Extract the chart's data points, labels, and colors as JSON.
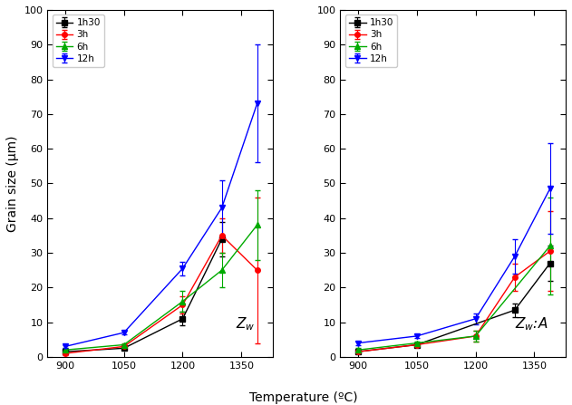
{
  "temperatures": [
    900,
    1050,
    1200,
    1300,
    1390
  ],
  "left_label": "Z_w",
  "right_label": "Z_w:A",
  "xlabel": "Temperature (ºC)",
  "ylabel": "Grain size (μm)",
  "ylim": [
    0,
    100
  ],
  "yticks": [
    0,
    10,
    20,
    30,
    40,
    50,
    60,
    70,
    80,
    90,
    100
  ],
  "series": [
    {
      "label": "1h30",
      "color": "#000000",
      "marker": "s",
      "zw_y": [
        1.5,
        2.5,
        11.0,
        34.0,
        null
      ],
      "zw_ye": [
        0.5,
        0.5,
        2.0,
        5.0,
        null
      ],
      "zwa_y": [
        1.5,
        3.5,
        null,
        13.5,
        27.0
      ],
      "zwa_ye": [
        0.5,
        0.5,
        null,
        2.0,
        5.0
      ]
    },
    {
      "label": "3h",
      "color": "#ff0000",
      "marker": "o",
      "zw_y": [
        1.0,
        3.0,
        15.0,
        35.0,
        25.0
      ],
      "zw_ye": [
        0.5,
        0.5,
        2.5,
        5.0,
        21.0
      ],
      "zwa_y": [
        1.5,
        3.5,
        6.0,
        23.0,
        30.5
      ],
      "zwa_ye": [
        0.5,
        0.5,
        1.5,
        4.0,
        11.5
      ]
    },
    {
      "label": "6h",
      "color": "#00aa00",
      "marker": "^",
      "zw_y": [
        2.0,
        3.5,
        16.0,
        25.0,
        38.0
      ],
      "zw_ye": [
        0.5,
        0.5,
        3.0,
        5.0,
        10.0
      ],
      "zwa_y": [
        2.0,
        4.0,
        6.0,
        null,
        32.0
      ],
      "zwa_ye": [
        0.5,
        0.5,
        1.5,
        null,
        14.0
      ]
    },
    {
      "label": "12h",
      "color": "#0000ff",
      "marker": "v",
      "zw_y": [
        3.0,
        7.0,
        25.5,
        43.0,
        73.0
      ],
      "zw_ye": [
        0.5,
        0.5,
        2.0,
        8.0,
        17.0
      ],
      "zwa_y": [
        4.0,
        6.0,
        11.0,
        29.0,
        48.5
      ],
      "zwa_ye": [
        0.5,
        0.5,
        1.5,
        5.0,
        13.0
      ]
    }
  ],
  "xticks": [
    900,
    1050,
    1200,
    1350
  ],
  "xlim": [
    855,
    1430
  ],
  "figsize": [
    6.31,
    4.47
  ],
  "dpi": 100
}
